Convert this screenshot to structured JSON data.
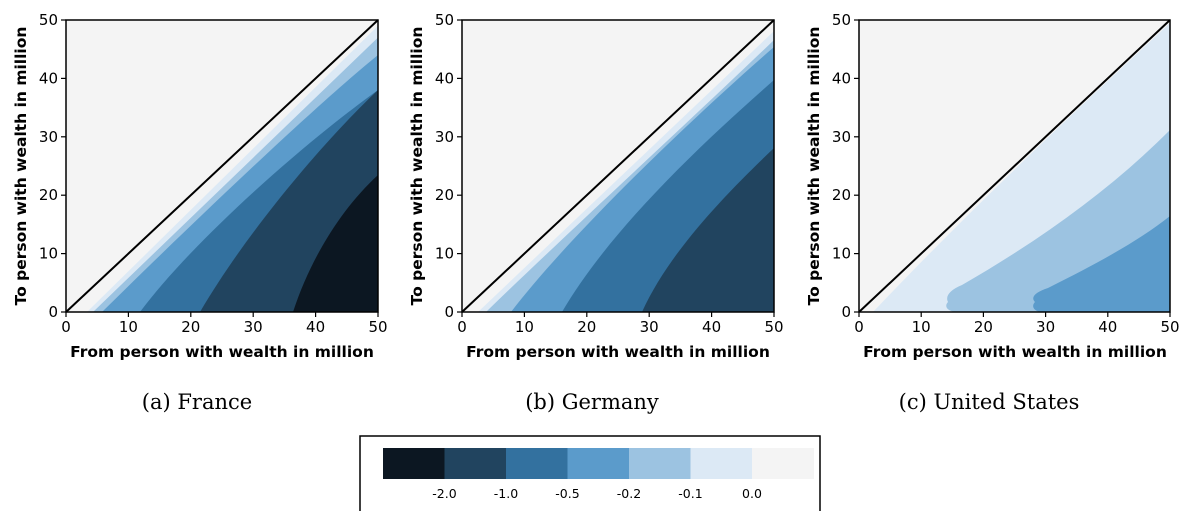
{
  "chart_data": [
    {
      "type": "heatmap",
      "caption": "(a) France",
      "xlabel": "From person with wealth in million",
      "ylabel": "To person with wealth in million",
      "xlim": [
        0,
        50
      ],
      "ylim": [
        0,
        50
      ],
      "xticks": [
        "0",
        "10",
        "20",
        "30",
        "40",
        "50"
      ],
      "yticks": [
        "0",
        "10",
        "20",
        "30",
        "40",
        "50"
      ],
      "diagonal_line": true,
      "contour_bands": [
        {
          "level": "-0.1",
          "x_at_y0": 3.5,
          "x_at_y50": 50,
          "y_at_x50": 49
        },
        {
          "level": "-0.2",
          "x_at_y0": 4.5,
          "x_at_y50": 50,
          "y_at_x50": 47
        },
        {
          "level": "-0.5",
          "x_at_y0": 6.5,
          "x_at_y50": 50,
          "y_at_x50": 44
        },
        {
          "level": "-1.0",
          "x_at_y0": 12,
          "x_at_y50": 50,
          "y_at_x50": 38
        },
        {
          "level": "-2.0",
          "x_at_y0": 21.5,
          "x_at_y50": 50,
          "y_at_x50": 23.5
        },
        {
          "level": "<-2.0",
          "x_at_y0": 36.5,
          "x_at_y50": 50,
          "y_at_x50": 23.5
        }
      ]
    },
    {
      "type": "heatmap",
      "caption": "(b) Germany",
      "xlabel": "From person with wealth in million",
      "ylabel": "To person with wealth in million",
      "xlim": [
        0,
        50
      ],
      "ylim": [
        0,
        50
      ],
      "xticks": [
        "0",
        "10",
        "20",
        "30",
        "40",
        "50"
      ],
      "yticks": [
        "0",
        "10",
        "20",
        "30",
        "40",
        "50"
      ],
      "diagonal_line": true,
      "contour_bands": [
        {
          "level": "-0.1",
          "x_at_y0": 2.5,
          "y_at_x50": 47.5
        },
        {
          "level": "-0.2",
          "x_at_y0": 4,
          "y_at_x50": 46
        },
        {
          "level": "-0.5",
          "x_at_y0": 7,
          "y_at_x50": 40
        },
        {
          "level": "-1.0",
          "x_at_y0": 16,
          "y_at_x50": 28
        },
        {
          "level": "-2.0",
          "x_at_y0": 29,
          "y_at_x50": 28
        }
      ]
    },
    {
      "type": "heatmap",
      "caption": "(c) United States",
      "xlabel": "From person with wealth in million",
      "ylabel": "To person with wealth in million",
      "xlim": [
        0,
        50
      ],
      "ylim": [
        0,
        50
      ],
      "xticks": [
        "0",
        "10",
        "20",
        "30",
        "40",
        "50"
      ],
      "yticks": [
        "0",
        "10",
        "20",
        "30",
        "40",
        "50"
      ],
      "diagonal_line": true,
      "contour_bands": [
        {
          "level": "0.0",
          "x_at_y0": 3,
          "y_at_x50": 49.5
        },
        {
          "level": "-0.1",
          "x_at_y0": 14,
          "y_at_x50": 31
        },
        {
          "level": "-0.2",
          "x_at_y0": 28.5,
          "y_at_x50": 16
        }
      ]
    }
  ],
  "legend": {
    "colors": [
      "#0c1722",
      "#21445f",
      "#33719f",
      "#5b9bcb",
      "#9cc3e1",
      "#dce9f5",
      "#f4f4f4"
    ],
    "labels": [
      "-2.0",
      "-1.0",
      "-0.5",
      "-0.2",
      "-0.1",
      "0.0"
    ]
  },
  "colors": {
    "background": "#f4f4f4",
    "diagonal": "#000000"
  }
}
